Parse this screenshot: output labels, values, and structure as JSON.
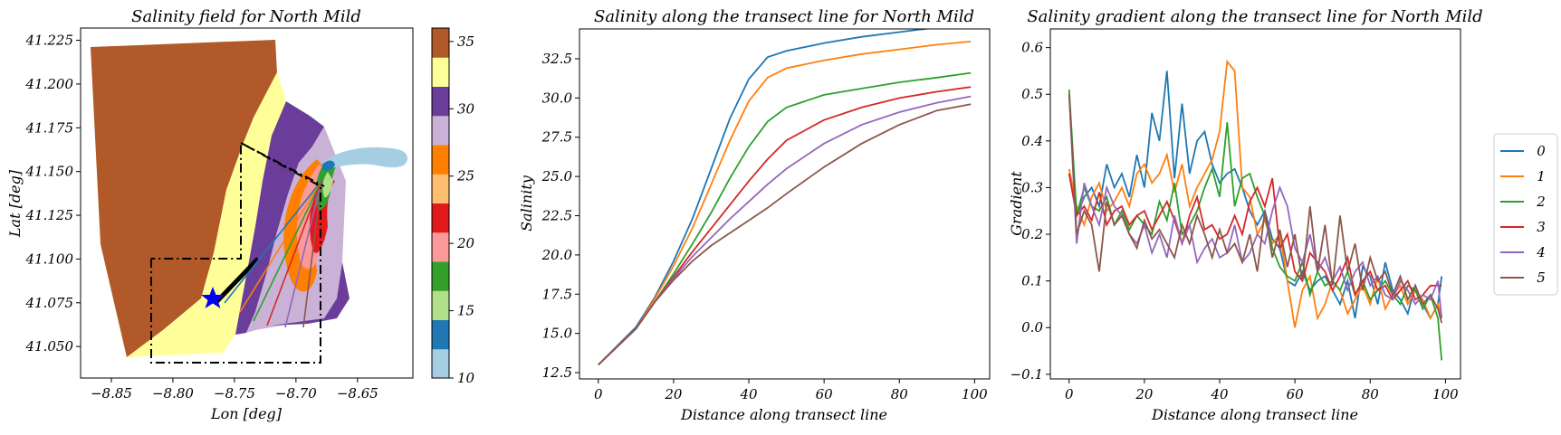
{
  "chart_data": [
    {
      "type": "map",
      "title": "Salinity field for North Mild",
      "xlabel": "Lon [deg]",
      "ylabel": "Lat [deg]",
      "xlim": [
        -8.875,
        -8.605
      ],
      "ylim": [
        41.032,
        41.232
      ],
      "x_ticks": [
        -8.85,
        -8.8,
        -8.75,
        -8.7,
        -8.65
      ],
      "x_tick_labels": [
        "−8.85",
        "−8.80",
        "−8.75",
        "−8.70",
        "−8.65"
      ],
      "y_ticks": [
        41.05,
        41.075,
        41.1,
        41.125,
        41.15,
        41.175,
        41.2,
        41.225
      ],
      "y_tick_labels": [
        "41.050",
        "41.075",
        "41.100",
        "41.125",
        "41.150",
        "41.175",
        "41.200",
        "41.225"
      ],
      "colorbar": {
        "range": [
          10,
          36
        ],
        "ticks": [
          10,
          15,
          20,
          25,
          30,
          35
        ],
        "tick_labels": [
          "10",
          "15",
          "20",
          "25",
          "30",
          "35"
        ],
        "colors": [
          "#a6cee3",
          "#1f78b4",
          "#b2df8a",
          "#33a02c",
          "#fb9a99",
          "#e31a1c",
          "#fdbf6f",
          "#ff7f00",
          "#cab2d6",
          "#6a3d9a",
          "#ffff99",
          "#b15928"
        ]
      },
      "marker": {
        "lon": -8.765,
        "lat": 41.075,
        "symbol": "star",
        "color": "#0000ff"
      }
    },
    {
      "type": "line",
      "title": "Salinity along the transect line for North Mild",
      "xlabel": "Distance along transect line",
      "ylabel": "Salinity",
      "xlim": [
        -5,
        104
      ],
      "ylim": [
        12.1,
        34.4
      ],
      "x_ticks": [
        0,
        20,
        40,
        60,
        80,
        100
      ],
      "y_ticks": [
        12.5,
        15.0,
        17.5,
        20.0,
        22.5,
        25.0,
        27.5,
        30.0,
        32.5
      ],
      "y_tick_labels": [
        "12.5",
        "15.0",
        "17.5",
        "20.0",
        "22.5",
        "25.0",
        "27.5",
        "30.0",
        "32.5"
      ],
      "x": [
        0,
        10,
        15,
        20,
        25,
        30,
        35,
        40,
        45,
        50,
        60,
        70,
        80,
        90,
        99
      ],
      "series": [
        {
          "name": "0",
          "color": "#1f77b4",
          "values": [
            13.0,
            15.4,
            17.3,
            19.6,
            22.3,
            25.5,
            28.7,
            31.2,
            32.6,
            33.0,
            33.5,
            33.9,
            34.2,
            34.5,
            34.7
          ]
        },
        {
          "name": "1",
          "color": "#ff7f0e",
          "values": [
            13.0,
            15.3,
            17.2,
            19.3,
            21.7,
            24.5,
            27.3,
            29.8,
            31.3,
            31.9,
            32.4,
            32.8,
            33.1,
            33.4,
            33.6
          ]
        },
        {
          "name": "2",
          "color": "#2ca02c",
          "values": [
            13.0,
            15.3,
            17.0,
            18.8,
            20.7,
            22.7,
            24.9,
            26.9,
            28.5,
            29.4,
            30.2,
            30.6,
            31.0,
            31.3,
            31.6
          ]
        },
        {
          "name": "3",
          "color": "#d62728",
          "values": [
            13.0,
            15.3,
            17.0,
            18.6,
            20.2,
            21.7,
            23.2,
            24.7,
            26.1,
            27.3,
            28.6,
            29.4,
            30.0,
            30.4,
            30.7
          ]
        },
        {
          "name": "4",
          "color": "#9467bd",
          "values": [
            13.0,
            15.3,
            17.0,
            18.5,
            19.9,
            21.1,
            22.3,
            23.4,
            24.5,
            25.5,
            27.1,
            28.3,
            29.1,
            29.7,
            30.1
          ]
        },
        {
          "name": "5",
          "color": "#8c564b",
          "values": [
            13.0,
            15.3,
            17.0,
            18.4,
            19.6,
            20.6,
            21.4,
            22.2,
            23.0,
            23.9,
            25.6,
            27.1,
            28.3,
            29.2,
            29.6
          ]
        }
      ]
    },
    {
      "type": "line",
      "title": "Salinity gradient along the transect line for North Mild",
      "xlabel": "Distance along transect line",
      "ylabel": "Gradient",
      "xlim": [
        -5,
        104
      ],
      "ylim": [
        -0.11,
        0.64
      ],
      "x_ticks": [
        0,
        20,
        40,
        60,
        80,
        100
      ],
      "y_ticks": [
        -0.1,
        0.0,
        0.1,
        0.2,
        0.3,
        0.4,
        0.5,
        0.6
      ],
      "y_tick_labels": [
        "−0.1",
        "0.0",
        "0.1",
        "0.2",
        "0.3",
        "0.4",
        "0.5",
        "0.6"
      ],
      "legend": {
        "placement": "right-outside"
      },
      "x": [
        0,
        2,
        4,
        6,
        8,
        10,
        12,
        14,
        16,
        18,
        20,
        22,
        24,
        26,
        28,
        30,
        32,
        34,
        36,
        38,
        40,
        42,
        44,
        46,
        48,
        50,
        52,
        54,
        56,
        58,
        60,
        62,
        64,
        66,
        68,
        70,
        72,
        74,
        76,
        78,
        80,
        82,
        84,
        86,
        88,
        90,
        92,
        94,
        96,
        98,
        99
      ],
      "series": [
        {
          "name": "0",
          "color": "#1f77b4",
          "values": [
            0.33,
            0.24,
            0.28,
            0.3,
            0.26,
            0.35,
            0.3,
            0.33,
            0.28,
            0.37,
            0.3,
            0.46,
            0.4,
            0.55,
            0.32,
            0.48,
            0.33,
            0.4,
            0.42,
            0.35,
            0.31,
            0.33,
            0.34,
            0.3,
            0.25,
            0.22,
            0.25,
            0.19,
            0.17,
            0.1,
            0.09,
            0.12,
            0.08,
            0.1,
            0.11,
            0.08,
            0.05,
            0.1,
            0.02,
            0.13,
            0.11,
            0.05,
            0.14,
            0.08,
            0.06,
            0.03,
            0.09,
            0.05,
            0.02,
            0.05,
            0.11
          ]
        },
        {
          "name": "1",
          "color": "#ff7f0e",
          "values": [
            0.34,
            0.26,
            0.22,
            0.28,
            0.31,
            0.25,
            0.27,
            0.3,
            0.26,
            0.33,
            0.35,
            0.31,
            0.33,
            0.37,
            0.29,
            0.35,
            0.26,
            0.3,
            0.33,
            0.36,
            0.42,
            0.57,
            0.55,
            0.3,
            0.28,
            0.2,
            0.23,
            0.18,
            0.2,
            0.1,
            0.0,
            0.08,
            0.11,
            0.02,
            0.05,
            0.1,
            0.08,
            0.03,
            0.06,
            0.09,
            0.05,
            0.11,
            0.04,
            0.07,
            0.09,
            0.05,
            0.08,
            0.06,
            0.02,
            0.05,
            0.02
          ]
        },
        {
          "name": "2",
          "color": "#2ca02c",
          "values": [
            0.51,
            0.24,
            0.3,
            0.26,
            0.25,
            0.28,
            0.22,
            0.25,
            0.21,
            0.24,
            0.22,
            0.2,
            0.27,
            0.23,
            0.31,
            0.2,
            0.22,
            0.25,
            0.3,
            0.34,
            0.28,
            0.44,
            0.26,
            0.32,
            0.33,
            0.28,
            0.24,
            0.17,
            0.13,
            0.11,
            0.1,
            0.14,
            0.07,
            0.12,
            0.09,
            0.1,
            0.08,
            0.12,
            0.07,
            0.1,
            0.06,
            0.08,
            0.1,
            0.07,
            0.05,
            0.09,
            0.08,
            0.04,
            0.07,
            0.02,
            -0.07
          ]
        },
        {
          "name": "3",
          "color": "#d62728",
          "values": [
            0.33,
            0.24,
            0.26,
            0.23,
            0.29,
            0.22,
            0.25,
            0.26,
            0.22,
            0.24,
            0.25,
            0.21,
            0.24,
            0.27,
            0.23,
            0.18,
            0.24,
            0.28,
            0.21,
            0.22,
            0.19,
            0.2,
            0.24,
            0.2,
            0.27,
            0.3,
            0.26,
            0.32,
            0.17,
            0.2,
            0.12,
            0.1,
            0.16,
            0.14,
            0.12,
            0.08,
            0.11,
            0.15,
            0.07,
            0.1,
            0.12,
            0.08,
            0.09,
            0.06,
            0.08,
            0.1,
            0.06,
            0.07,
            0.09,
            0.09,
            0.09
          ]
        },
        {
          "name": "4",
          "color": "#9467bd",
          "values": [
            0.5,
            0.18,
            0.31,
            0.26,
            0.22,
            0.3,
            0.26,
            0.24,
            0.2,
            0.18,
            0.22,
            0.16,
            0.2,
            0.15,
            0.24,
            0.18,
            0.22,
            0.14,
            0.17,
            0.19,
            0.15,
            0.16,
            0.22,
            0.14,
            0.16,
            0.2,
            0.18,
            0.25,
            0.3,
            0.26,
            0.17,
            0.14,
            0.2,
            0.12,
            0.15,
            0.1,
            0.13,
            0.08,
            0.12,
            0.14,
            0.09,
            0.11,
            0.07,
            0.06,
            0.1,
            0.08,
            0.05,
            0.07,
            0.06,
            0.1,
            0.02
          ]
        },
        {
          "name": "5",
          "color": "#8c564b",
          "values": [
            0.5,
            0.2,
            0.25,
            0.22,
            0.12,
            0.27,
            0.22,
            0.24,
            0.2,
            0.17,
            0.23,
            0.19,
            0.21,
            0.18,
            0.15,
            0.22,
            0.18,
            0.24,
            0.2,
            0.15,
            0.21,
            0.16,
            0.18,
            0.14,
            0.2,
            0.12,
            0.25,
            0.15,
            0.21,
            0.13,
            0.2,
            0.1,
            0.26,
            0.12,
            0.22,
            0.09,
            0.24,
            0.12,
            0.18,
            0.08,
            0.15,
            0.1,
            0.12,
            0.07,
            0.11,
            0.06,
            0.09,
            0.05,
            0.07,
            0.04,
            0.01
          ]
        }
      ]
    }
  ]
}
